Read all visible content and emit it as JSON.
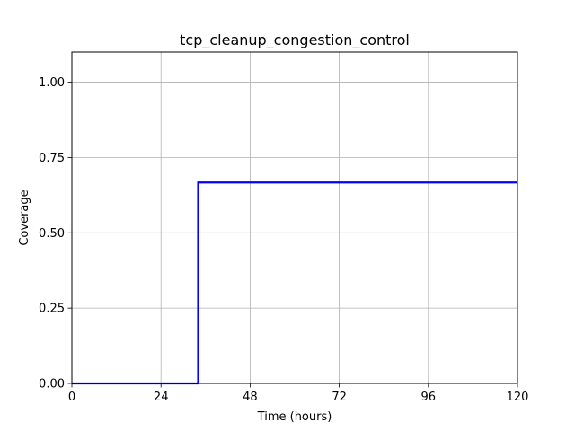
{
  "chart_data": {
    "type": "line",
    "title": "tcp_cleanup_congestion_control",
    "xlabel": "Time (hours)",
    "ylabel": "Coverage",
    "xlim": [
      0,
      120
    ],
    "ylim": [
      0,
      1.1
    ],
    "xticks": [
      0,
      24,
      48,
      72,
      96,
      120
    ],
    "yticks": [
      0.0,
      0.25,
      0.5,
      0.75,
      1.0
    ],
    "xtick_labels": [
      "0",
      "24",
      "48",
      "72",
      "96",
      "120"
    ],
    "ytick_labels": [
      "0.00",
      "0.25",
      "0.50",
      "0.75",
      "1.00"
    ],
    "grid": true,
    "series": [
      {
        "color": "#0000ff",
        "step": true,
        "x": [
          0,
          34,
          34,
          120
        ],
        "y": [
          0,
          0,
          0.667,
          0.667
        ]
      }
    ]
  }
}
